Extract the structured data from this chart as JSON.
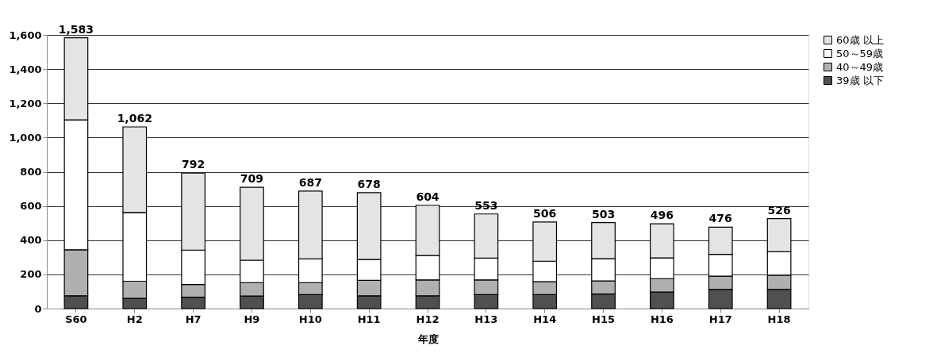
{
  "chart_data": {
    "type": "bar",
    "stacked": true,
    "xlabel": "年度",
    "categories": [
      "S60",
      "H2",
      "H7",
      "H9",
      "H10",
      "H11",
      "H12",
      "H13",
      "H14",
      "H15",
      "H16",
      "H17",
      "H18"
    ],
    "series": [
      {
        "name": "39歳 以下",
        "color": "#505050",
        "values": [
          75,
          60,
          67,
          74,
          82,
          75,
          75,
          82,
          82,
          85,
          97,
          112,
          112
        ]
      },
      {
        "name": "40～49歳",
        "color": "#b0b0b0",
        "values": [
          269,
          100,
          74,
          78,
          70,
          90,
          93,
          86,
          75,
          77,
          78,
          78,
          83
        ]
      },
      {
        "name": "50～59歳",
        "color": "#ffffff",
        "values": [
          759,
          402,
          201,
          131,
          138,
          122,
          142,
          127,
          120,
          130,
          121,
          127,
          137
        ]
      },
      {
        "name": "60歳 以上",
        "color": "#e4e4e4",
        "values": [
          480,
          500,
          450,
          426,
          397,
          391,
          294,
          258,
          229,
          211,
          200,
          159,
          194
        ]
      }
    ],
    "totals": [
      "1,583",
      "1,062",
      "792",
      "709",
      "687",
      "678",
      "604",
      "553",
      "506",
      "503",
      "496",
      "476",
      "526"
    ],
    "ylim": [
      0,
      1600
    ],
    "yticks": [
      0,
      200,
      400,
      600,
      800,
      {
        "value": 1000,
        "label": "1,000"
      },
      {
        "value": 1200,
        "label": "1,200"
      },
      {
        "value": 1400,
        "label": "1,400"
      },
      {
        "value": 1600,
        "label": "1,600"
      }
    ],
    "grid": "y",
    "legend": "right"
  }
}
